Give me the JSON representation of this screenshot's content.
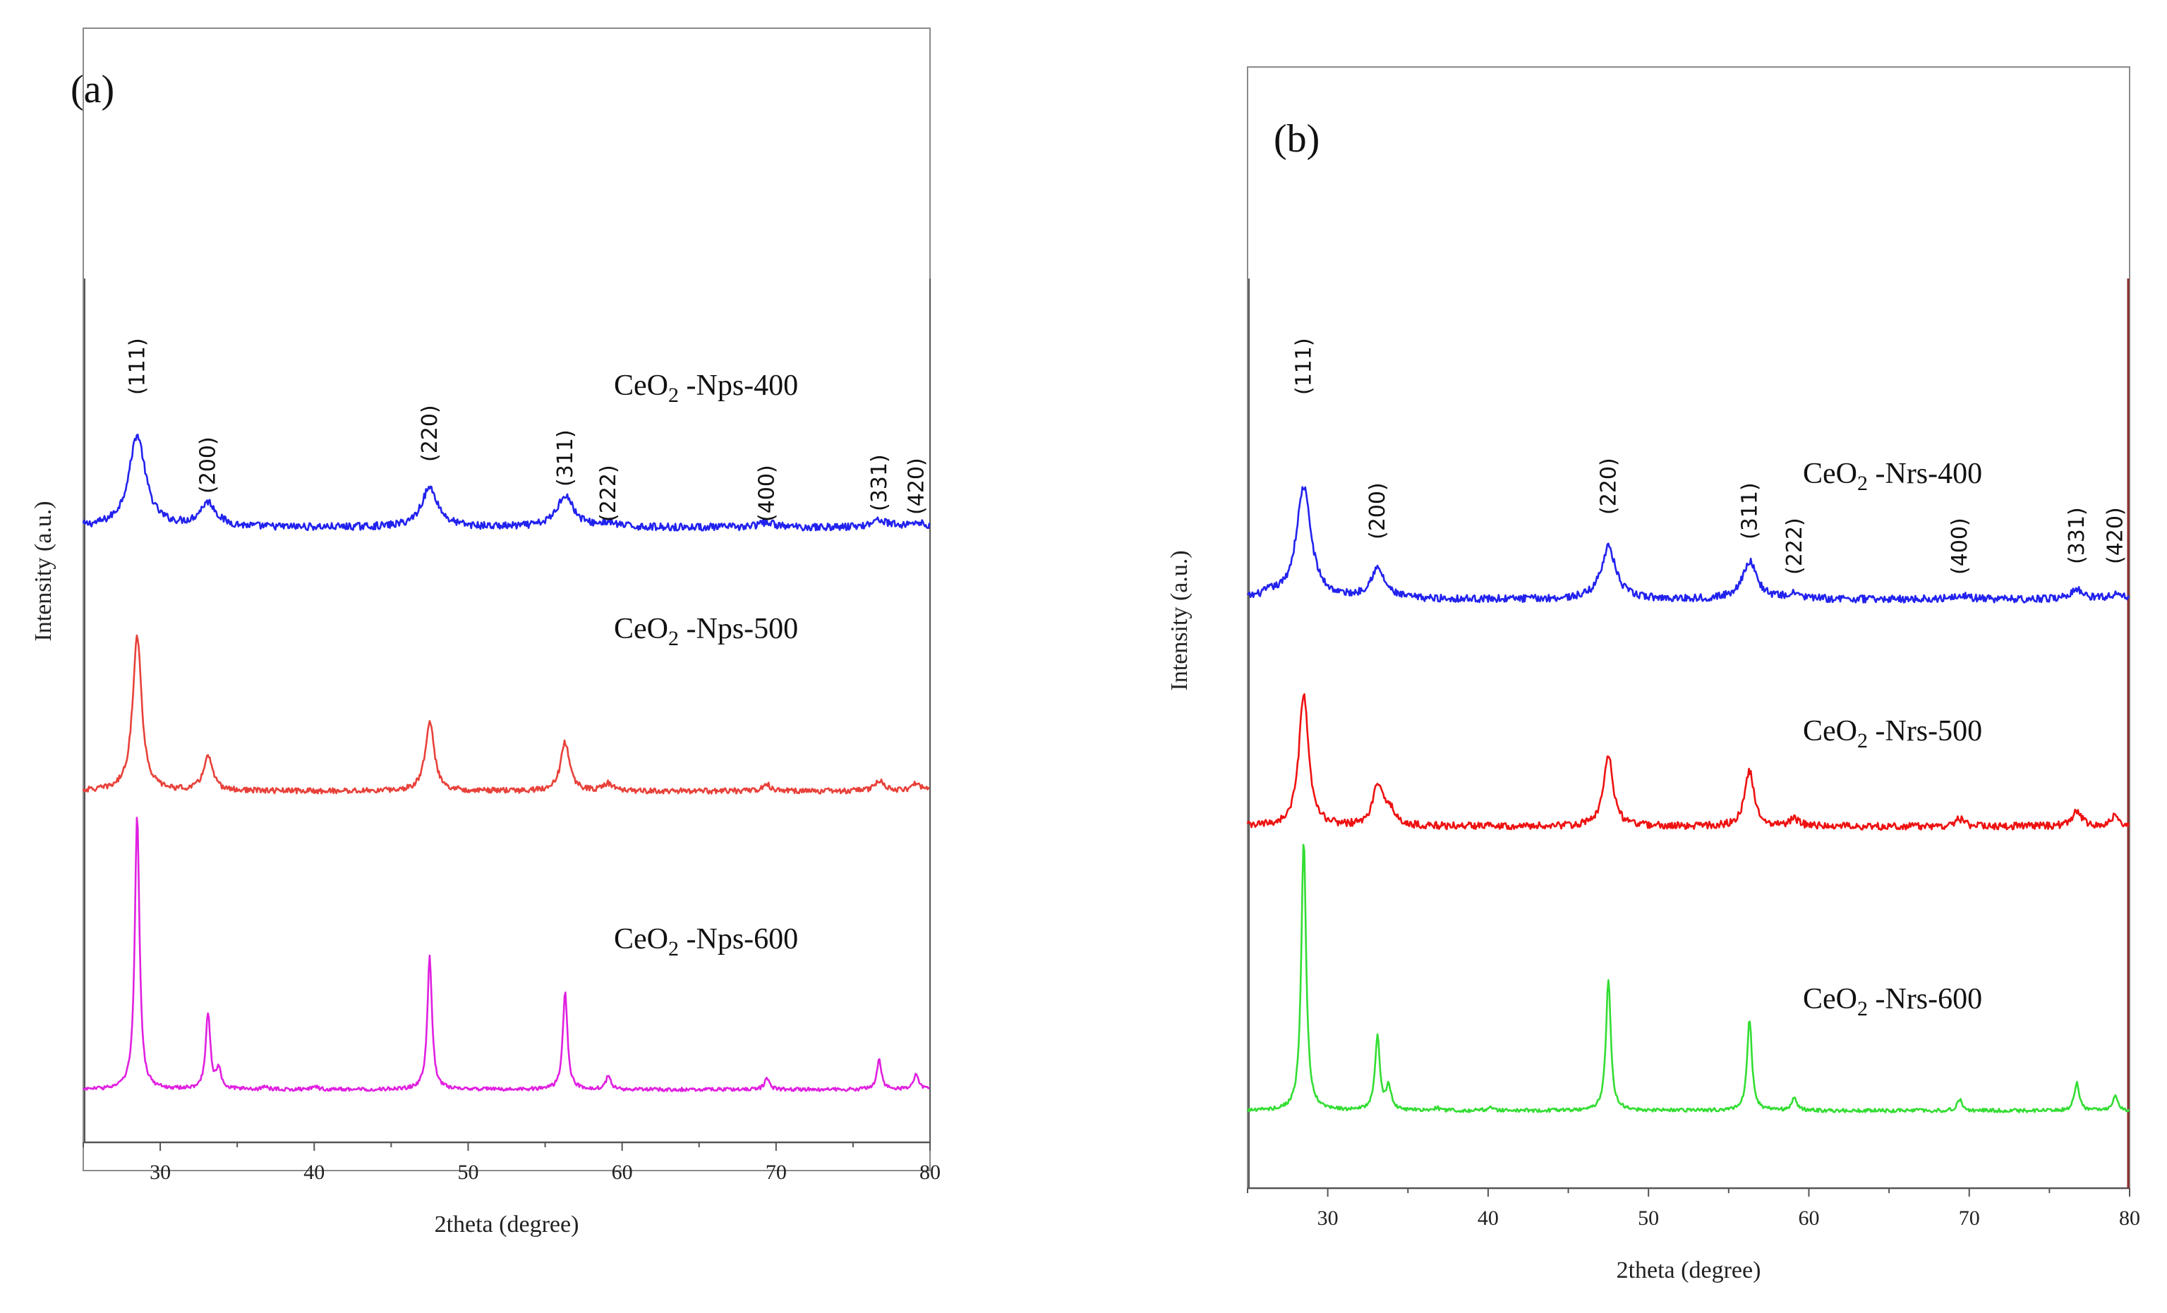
{
  "chart_data": [
    {
      "panel": "(a)",
      "type": "line",
      "xlabel": "2theta (degree)",
      "ylabel": "Intensity (a.u.)",
      "xlim": [
        25,
        80
      ],
      "xticks": [
        30,
        40,
        50,
        60,
        70,
        80
      ],
      "yticks": [],
      "grid": false,
      "hkl_labels": [
        {
          "text": "(111)",
          "x": 28.5
        },
        {
          "text": "(200)",
          "x": 33.1
        },
        {
          "text": "(220)",
          "x": 47.5
        },
        {
          "text": "(311)",
          "x": 56.3
        },
        {
          "text": "(222)",
          "x": 59.1
        },
        {
          "text": "(400)",
          "x": 69.4
        },
        {
          "text": "(331)",
          "x": 76.7
        },
        {
          "text": "(420)",
          "x": 79.1
        }
      ],
      "series": [
        {
          "name": "CeO2 -Nps-400",
          "sub": "2",
          "label_pre": "CeO",
          "label_post": " -Nps-400",
          "color": "#2222ee",
          "baseline": 0.35,
          "width": 0.65,
          "noise": 0.04,
          "peaks": [
            [
              28.5,
              1.0
            ],
            [
              33.1,
              0.26
            ],
            [
              47.5,
              0.43
            ],
            [
              56.3,
              0.35
            ],
            [
              59.1,
              0.04
            ],
            [
              69.4,
              0.05
            ],
            [
              76.7,
              0.08
            ],
            [
              79.1,
              0.05
            ]
          ]
        },
        {
          "name": "CeO2 -Nps-500",
          "sub": "2",
          "label_pre": "CeO",
          "label_post": " -Nps-500",
          "color": "#e8413a",
          "baseline": 0.0,
          "width": 0.35,
          "noise": 0.03,
          "peaks": [
            [
              28.5,
              1.7
            ],
            [
              33.1,
              0.38
            ],
            [
              47.5,
              0.76
            ],
            [
              56.3,
              0.53
            ],
            [
              59.1,
              0.08
            ],
            [
              69.4,
              0.07
            ],
            [
              76.7,
              0.12
            ],
            [
              79.1,
              0.09
            ]
          ]
        },
        {
          "name": "CeO2 -Nps-600",
          "sub": "2",
          "label_pre": "CeO",
          "label_post": " -Nps-600",
          "color": "#e020e0",
          "baseline": -0.55,
          "width": 0.18,
          "noise": 0.02,
          "peaks": [
            [
              28.5,
              3.0
            ],
            [
              33.1,
              0.83
            ],
            [
              33.8,
              0.22
            ],
            [
              36.8,
              0.03
            ],
            [
              40.1,
              0.03
            ],
            [
              47.5,
              1.45
            ],
            [
              56.3,
              1.05
            ],
            [
              59.1,
              0.15
            ],
            [
              69.4,
              0.13
            ],
            [
              76.7,
              0.32
            ],
            [
              79.1,
              0.18
            ]
          ]
        }
      ]
    },
    {
      "panel": "(b)",
      "type": "line",
      "xlabel": "2theta (degree)",
      "ylabel": "Intensity (a.u.)",
      "xlim": [
        25,
        80
      ],
      "xticks": [
        30,
        40,
        50,
        60,
        70,
        80
      ],
      "yticks": [],
      "grid": false,
      "hkl_labels": [
        {
          "text": "(111)",
          "x": 28.5
        },
        {
          "text": "(200)",
          "x": 33.1
        },
        {
          "text": "(220)",
          "x": 47.5
        },
        {
          "text": "(311)",
          "x": 56.3
        },
        {
          "text": "(222)",
          "x": 59.1
        },
        {
          "text": "(400)",
          "x": 69.4
        },
        {
          "text": "(331)",
          "x": 76.7
        },
        {
          "text": "(420)",
          "x": 79.1
        }
      ],
      "series": [
        {
          "name": "CeO2 -Nrs-400",
          "sub": "2",
          "label_pre": "CeO",
          "label_post": " -Nrs-400",
          "color": "#2222ee",
          "baseline": 0.4,
          "width": 0.55,
          "noise": 0.04,
          "peaks": [
            [
              26.4,
              0.05
            ],
            [
              28.5,
              1.22
            ],
            [
              33.1,
              0.32
            ],
            [
              47.5,
              0.57
            ],
            [
              56.3,
              0.41
            ],
            [
              59.1,
              0.05
            ],
            [
              69.4,
              0.05
            ],
            [
              76.7,
              0.1
            ],
            [
              79.1,
              0.05
            ]
          ]
        },
        {
          "name": "CeO2 -Nrs-500",
          "sub": "2",
          "label_pre": "CeO",
          "label_post": " -Nrs-500",
          "color": "#ee1111",
          "baseline": 0.0,
          "width": 0.35,
          "noise": 0.04,
          "peaks": [
            [
              28.5,
              1.45
            ],
            [
              33.1,
              0.43
            ],
            [
              33.8,
              0.2
            ],
            [
              40.1,
              0.03
            ],
            [
              47.5,
              0.79
            ],
            [
              56.3,
              0.6
            ],
            [
              59.1,
              0.08
            ],
            [
              69.4,
              0.08
            ],
            [
              76.7,
              0.17
            ],
            [
              79.1,
              0.11
            ]
          ]
        },
        {
          "name": "CeO2 -Nrs-600",
          "sub": "2",
          "label_pre": "CeO",
          "label_post": " -Nrs-600",
          "color": "#33dd33",
          "baseline": -0.62,
          "width": 0.18,
          "noise": 0.02,
          "peaks": [
            [
              28.5,
              2.95
            ],
            [
              33.1,
              0.8
            ],
            [
              33.8,
              0.25
            ],
            [
              36.8,
              0.03
            ],
            [
              40.1,
              0.04
            ],
            [
              47.5,
              1.43
            ],
            [
              56.3,
              1.0
            ],
            [
              59.1,
              0.15
            ],
            [
              69.4,
              0.12
            ],
            [
              76.7,
              0.3
            ],
            [
              79.1,
              0.17
            ]
          ]
        }
      ]
    }
  ]
}
